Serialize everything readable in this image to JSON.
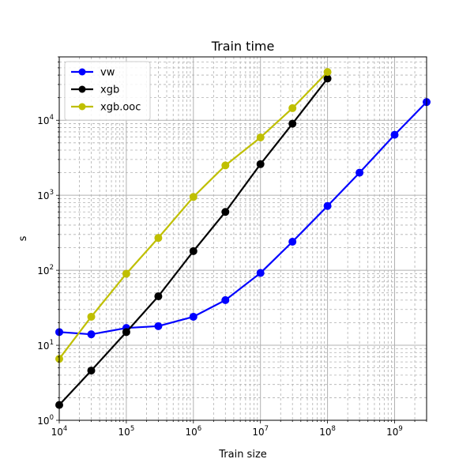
{
  "chart_data": {
    "type": "line",
    "title": "Train time",
    "xlabel": "Train size",
    "ylabel": "s",
    "xscale": "log",
    "yscale": "log",
    "xlim": [
      10000,
      3000000000
    ],
    "ylim": [
      1,
      70000
    ],
    "xticks": [
      {
        "value": 10000,
        "base": "10",
        "exp": "4"
      },
      {
        "value": 100000,
        "base": "10",
        "exp": "5"
      },
      {
        "value": 1000000,
        "base": "10",
        "exp": "6"
      },
      {
        "value": 10000000,
        "base": "10",
        "exp": "7"
      },
      {
        "value": 100000000,
        "base": "10",
        "exp": "8"
      },
      {
        "value": 1000000000,
        "base": "10",
        "exp": "9"
      }
    ],
    "yticks": [
      {
        "value": 1,
        "base": "10",
        "exp": "0"
      },
      {
        "value": 10,
        "base": "10",
        "exp": "1"
      },
      {
        "value": 100,
        "base": "10",
        "exp": "2"
      },
      {
        "value": 1000,
        "base": "10",
        "exp": "3"
      },
      {
        "value": 10000,
        "base": "10",
        "exp": "4"
      }
    ],
    "grid": {
      "major": true,
      "minor": true
    },
    "legend_position": "top-left",
    "series": [
      {
        "name": "vw",
        "color": "#0000ff",
        "x": [
          10000,
          30000,
          100000,
          300000,
          1000000,
          3000000,
          10000000,
          30000000,
          100000000,
          300000000,
          1000000000,
          3000000000
        ],
        "y": [
          15,
          14,
          17,
          18,
          24,
          40,
          92,
          240,
          720,
          2000,
          6400,
          17500
        ]
      },
      {
        "name": "xgb",
        "color": "#000000",
        "x": [
          10000,
          30000,
          100000,
          300000,
          1000000,
          3000000,
          10000000,
          30000000,
          100000000
        ],
        "y": [
          1.6,
          4.6,
          15,
          45,
          180,
          600,
          2600,
          9000,
          36000
        ]
      },
      {
        "name": "xgb.ooc",
        "color": "#bfbf00",
        "x": [
          10000,
          30000,
          100000,
          300000,
          1000000,
          3000000,
          10000000,
          30000000,
          100000000
        ],
        "y": [
          6.6,
          24,
          90,
          270,
          950,
          2500,
          5900,
          14500,
          44000
        ]
      }
    ]
  }
}
